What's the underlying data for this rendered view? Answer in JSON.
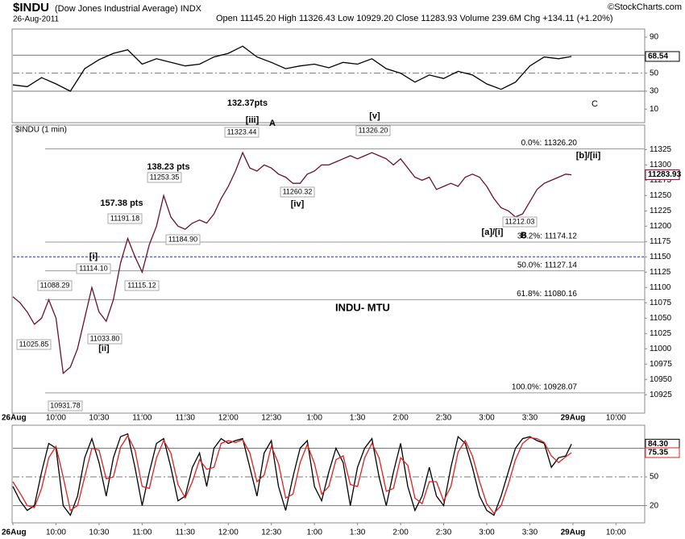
{
  "header": {
    "symbol": "$INDU",
    "name": "(Dow Jones Industrial Average) INDX",
    "date": "26-Aug-2011",
    "quote": "Open 11145.20   High 11326.43   Low 10929.20   Close 11283.93   Volume 239.6M   Chg +134.11 (+1.20%)",
    "credit": "©StockCharts.com"
  },
  "chart_data": [
    {
      "type": "line",
      "xlim": [
        0,
        440
      ],
      "ylim": [
        -5,
        99
      ],
      "yticks": [
        10,
        30,
        50,
        70,
        90
      ],
      "levels": [
        {
          "value": 70,
          "dash": false
        },
        {
          "value": 50,
          "dash": true
        },
        {
          "value": 30,
          "dash": false
        }
      ],
      "x": [
        0,
        10,
        20,
        30,
        40,
        50,
        60,
        70,
        80,
        90,
        100,
        110,
        120,
        130,
        140,
        150,
        160,
        170,
        180,
        190,
        200,
        210,
        220,
        230,
        240,
        250,
        260,
        270,
        280,
        290,
        300,
        310,
        320,
        330,
        340,
        350,
        360,
        370,
        380,
        389
      ],
      "series": [
        {
          "name": "RSI",
          "color": "#000000",
          "values": [
            37,
            35,
            45,
            38,
            30,
            55,
            65,
            72,
            76,
            60,
            66,
            62,
            58,
            60,
            68,
            72,
            80,
            68,
            62,
            55,
            58,
            60,
            56,
            62,
            60,
            66,
            55,
            50,
            40,
            48,
            44,
            52,
            48,
            38,
            32,
            40,
            58,
            68,
            66,
            68.54
          ]
        }
      ]
    },
    {
      "type": "line",
      "title": "$INDU (1 min)",
      "xlim": [
        0,
        440
      ],
      "ylim": [
        10895,
        11365
      ],
      "yticks": [
        10925,
        10950,
        10975,
        11000,
        11025,
        11050,
        11075,
        11100,
        11125,
        11150,
        11175,
        11200,
        11225,
        11250,
        11275,
        11300,
        11325
      ],
      "xticks": [
        {
          "value": 0,
          "label": "26Aug"
        },
        {
          "value": 30,
          "label": "10:00"
        },
        {
          "value": 60,
          "label": "10:30"
        },
        {
          "value": 90,
          "label": "11:00"
        },
        {
          "value": 120,
          "label": "11:30"
        },
        {
          "value": 150,
          "label": "12:00"
        },
        {
          "value": 180,
          "label": "12:30"
        },
        {
          "value": 210,
          "label": "1:00"
        },
        {
          "value": 240,
          "label": "1:30"
        },
        {
          "value": 270,
          "label": "2:00"
        },
        {
          "value": 300,
          "label": "2:30"
        },
        {
          "value": 330,
          "label": "3:00"
        },
        {
          "value": 360,
          "label": "3:30"
        },
        {
          "value": 390,
          "label": "29Aug"
        },
        {
          "value": 420,
          "label": "10:00"
        }
      ],
      "fib_levels": [
        {
          "label": "0.0%: 11326.20",
          "value": 11326.2
        },
        {
          "label": "38.2%: 11174.12",
          "value": 11174.12
        },
        {
          "label": "50.0%: 11127.14",
          "value": 11127.14
        },
        {
          "label": "61.8%: 11080.16",
          "value": 11080.16
        },
        {
          "label": "100.0%: 10928.07",
          "value": 10928.07
        }
      ],
      "reference_line": {
        "value": 11150,
        "color": "#2030a0"
      },
      "x": [
        0,
        5,
        10,
        15,
        20,
        25,
        30,
        35,
        40,
        45,
        50,
        55,
        60,
        65,
        70,
        75,
        80,
        85,
        90,
        95,
        100,
        105,
        110,
        115,
        120,
        125,
        130,
        135,
        140,
        145,
        150,
        155,
        160,
        165,
        170,
        175,
        180,
        185,
        190,
        195,
        200,
        205,
        210,
        215,
        220,
        225,
        230,
        235,
        240,
        245,
        250,
        255,
        260,
        265,
        270,
        275,
        280,
        285,
        290,
        295,
        300,
        305,
        310,
        315,
        320,
        325,
        330,
        335,
        340,
        345,
        350,
        355,
        360,
        365,
        370,
        375,
        380,
        385,
        389
      ],
      "series": [
        {
          "name": "$INDU",
          "color": "#6a1030",
          "values": [
            11085,
            11075,
            11060,
            11040,
            11050,
            11080,
            11050,
            10960,
            10970,
            11000,
            11050,
            11100,
            11060,
            11045,
            11080,
            11140,
            11180,
            11150,
            11125,
            11170,
            11200,
            11250,
            11215,
            11200,
            11195,
            11205,
            11210,
            11205,
            11220,
            11245,
            11265,
            11290,
            11320,
            11295,
            11290,
            11300,
            11295,
            11285,
            11280,
            11270,
            11270,
            11285,
            11290,
            11300,
            11300,
            11305,
            11310,
            11315,
            11310,
            11315,
            11320,
            11315,
            11310,
            11300,
            11310,
            11295,
            11280,
            11275,
            11280,
            11260,
            11265,
            11270,
            11265,
            11280,
            11285,
            11280,
            11265,
            11245,
            11230,
            11225,
            11215,
            11220,
            11240,
            11260,
            11270,
            11275,
            11280,
            11285,
            11283.93
          ]
        }
      ],
      "annotations": [
        {
          "text": "132.37pts",
          "color": "#1a2ab0"
        },
        {
          "text": "C",
          "color": "#d01010"
        },
        {
          "text": "[iii]",
          "color": "#1a2ab0"
        },
        {
          "text": "A",
          "color": "#d01010"
        },
        {
          "text": "[v]",
          "color": "#1a2ab0"
        },
        {
          "text": "11323.44",
          "color": "#000000"
        },
        {
          "text": "11326.20",
          "color": "#000000"
        },
        {
          "text": "[b]/[ii]",
          "color": "#1a2ab0"
        },
        {
          "text": "138.23 pts",
          "color": "#1a2ab0"
        },
        {
          "text": "11253.35",
          "color": "#000000"
        },
        {
          "text": "11260.32",
          "color": "#000000"
        },
        {
          "text": "[iv]",
          "color": "#1a2ab0"
        },
        {
          "text": "157.38 pts",
          "color": "#1a2ab0"
        },
        {
          "text": "11191.18",
          "color": "#000000"
        },
        {
          "text": "11212.03",
          "color": "#000000"
        },
        {
          "text": "[a]/[i]",
          "color": "#1a2ab0"
        },
        {
          "text": "B",
          "color": "#d01010"
        },
        {
          "text": "11184.90",
          "color": "#000000"
        },
        {
          "text": "[i]",
          "color": "#1a2ab0"
        },
        {
          "text": "11114.10",
          "color": "#000000"
        },
        {
          "text": "11088.29",
          "color": "#000000"
        },
        {
          "text": "11115.12",
          "color": "#000000"
        },
        {
          "text": "INDU- MTU",
          "color": "#1a2ab0"
        },
        {
          "text": "11025.85",
          "color": "#000000"
        },
        {
          "text": "11033.80",
          "color": "#000000"
        },
        {
          "text": "[ii]",
          "color": "#1a2ab0"
        },
        {
          "text": "10931.78",
          "color": "#000000"
        }
      ]
    },
    {
      "type": "line",
      "xlim": [
        0,
        440
      ],
      "ylim": [
        2,
        104
      ],
      "yticks": [
        20,
        50,
        80
      ],
      "levels": [
        {
          "value": 80,
          "dash": false
        },
        {
          "value": 50,
          "dash": true
        },
        {
          "value": 20,
          "dash": false
        }
      ],
      "x": [
        0,
        5,
        10,
        15,
        20,
        25,
        30,
        35,
        40,
        45,
        50,
        55,
        60,
        65,
        70,
        75,
        80,
        85,
        90,
        95,
        100,
        105,
        110,
        115,
        120,
        125,
        130,
        135,
        140,
        145,
        150,
        155,
        160,
        165,
        170,
        175,
        180,
        185,
        190,
        195,
        200,
        205,
        210,
        215,
        220,
        225,
        230,
        235,
        240,
        245,
        250,
        255,
        260,
        265,
        270,
        275,
        280,
        285,
        290,
        295,
        300,
        305,
        310,
        315,
        320,
        325,
        330,
        335,
        340,
        345,
        350,
        355,
        360,
        365,
        370,
        375,
        380,
        385,
        389
      ],
      "series": [
        {
          "name": "%K",
          "color": "#000000",
          "last_label": "84.30",
          "values": [
            40,
            25,
            15,
            20,
            55,
            85,
            80,
            20,
            10,
            30,
            70,
            90,
            65,
            30,
            70,
            92,
            95,
            60,
            20,
            55,
            85,
            90,
            60,
            25,
            30,
            60,
            75,
            40,
            80,
            90,
            85,
            88,
            90,
            60,
            30,
            75,
            88,
            40,
            15,
            50,
            80,
            88,
            40,
            25,
            55,
            80,
            65,
            20,
            60,
            80,
            90,
            50,
            20,
            55,
            85,
            40,
            15,
            30,
            60,
            30,
            20,
            60,
            92,
            85,
            60,
            30,
            15,
            10,
            30,
            55,
            80,
            90,
            92,
            88,
            85,
            60,
            70,
            72,
            84.3
          ]
        },
        {
          "name": "%D",
          "color": "#e02020",
          "last_label": "75.35",
          "values": [
            45,
            33,
            20,
            18,
            38,
            70,
            82,
            50,
            15,
            20,
            50,
            80,
            78,
            48,
            50,
            81,
            93,
            78,
            40,
            38,
            70,
            88,
            75,
            42,
            28,
            45,
            68,
            58,
            60,
            85,
            88,
            86,
            89,
            75,
            45,
            52,
            82,
            64,
            28,
            32,
            65,
            84,
            64,
            32,
            40,
            68,
            72,
            42,
            40,
            70,
            85,
            70,
            35,
            38,
            70,
            62,
            28,
            22,
            45,
            45,
            25,
            40,
            76,
            88,
            72,
            45,
            22,
            12,
            20,
            42,
            68,
            85,
            91,
            90,
            86,
            72,
            65,
            71,
            75.35
          ]
        }
      ]
    }
  ]
}
